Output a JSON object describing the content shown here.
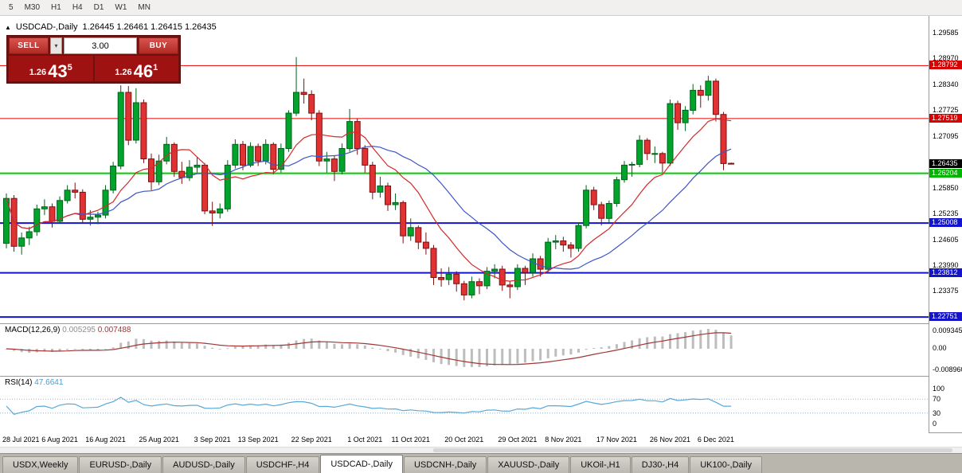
{
  "toolbar": {
    "timeframes": [
      "5",
      "M30",
      "H1",
      "H4",
      "D1",
      "W1",
      "MN"
    ]
  },
  "icons": {
    "marker": "▲",
    "dropdown": "▾"
  },
  "chart": {
    "symbol": "USDCAD-,Daily",
    "ohlc": "1.26445 1.26461 1.26415 1.26435"
  },
  "trade_panel": {
    "sell_label": "SELL",
    "buy_label": "BUY",
    "volume": "3.00",
    "bid": {
      "prefix": "1.26",
      "big": "43",
      "sup": "5"
    },
    "ask": {
      "prefix": "1.26",
      "big": "46",
      "sup": "1"
    }
  },
  "price_axis": {
    "ticks": [
      {
        "label": "1.29585",
        "price": 1.29585
      },
      {
        "label": "1.28970",
        "price": 1.2897
      },
      {
        "label": "1.28340",
        "price": 1.2834
      },
      {
        "label": "1.27725",
        "price": 1.27725
      },
      {
        "label": "1.27095",
        "price": 1.27095
      },
      {
        "label": "1.25850",
        "price": 1.2585
      },
      {
        "label": "1.25235",
        "price": 1.25235
      },
      {
        "label": "1.24605",
        "price": 1.24605
      },
      {
        "label": "1.23990",
        "price": 1.2399
      },
      {
        "label": "1.23375",
        "price": 1.23375
      }
    ],
    "current": {
      "label": "1.26435",
      "price": 1.26435,
      "bg": "#000000"
    }
  },
  "hlines": [
    {
      "label": "1.28792",
      "price": 1.28792,
      "color": "#e80000",
      "badge": "#d80000",
      "width": 1
    },
    {
      "label": "1.27519",
      "price": 1.27519,
      "color": "#e80000",
      "badge": "#d80000",
      "width": 1
    },
    {
      "label": "1.26204",
      "price": 1.26204,
      "color": "#00ce00",
      "badge": "#00b400",
      "width": 2
    },
    {
      "label": "1.25008",
      "price": 1.25008,
      "color": "#1414cc",
      "badge": "#1414cc",
      "width": 2
    },
    {
      "label": "1.23812",
      "price": 1.23812,
      "color": "#1414cc",
      "badge": "#1414cc",
      "width": 2
    },
    {
      "label": "1.22751",
      "price": 1.22751,
      "color": "#1414cc",
      "badge": "#1414cc",
      "width": 2
    }
  ],
  "colors": {
    "bull": "#00a42c",
    "bull_border": "#00611a",
    "bear": "#e03232",
    "bear_border": "#7e0f0f",
    "macd_hist": "#bdbdbd",
    "macd_signal": "#a03636",
    "rsi": "#58a8d8",
    "rsi_level": "#8ab6d2"
  },
  "dates": [
    {
      "label": "28 Jul 2021",
      "i": 0
    },
    {
      "label": "6 Aug 2021",
      "i": 7
    },
    {
      "label": "16 Aug 2021",
      "i": 13
    },
    {
      "label": "25 Aug 2021",
      "i": 20
    },
    {
      "label": "3 Sep 2021",
      "i": 27
    },
    {
      "label": "13 Sep 2021",
      "i": 33
    },
    {
      "label": "22 Sep 2021",
      "i": 40
    },
    {
      "label": "1 Oct 2021",
      "i": 47
    },
    {
      "label": "11 Oct 2021",
      "i": 53
    },
    {
      "label": "20 Oct 2021",
      "i": 60
    },
    {
      "label": "29 Oct 2021",
      "i": 67
    },
    {
      "label": "8 Nov 2021",
      "i": 73
    },
    {
      "label": "17 Nov 2021",
      "i": 80
    },
    {
      "label": "26 Nov 2021",
      "i": 87
    },
    {
      "label": "6 Dec 2021",
      "i": 93
    }
  ],
  "tabs": [
    {
      "label": "USDX,Weekly",
      "active": false
    },
    {
      "label": "EURUSD-,Daily",
      "active": false
    },
    {
      "label": "AUDUSD-,Daily",
      "active": false
    },
    {
      "label": "USDCHF-,H4",
      "active": false
    },
    {
      "label": "USDCAD-,Daily",
      "active": true
    },
    {
      "label": "USDCNH-,Daily",
      "active": false
    },
    {
      "label": "XAUUSD-,Daily",
      "active": false
    },
    {
      "label": "UKOil-,H1",
      "active": false
    },
    {
      "label": "DJ30-,H4",
      "active": false
    },
    {
      "label": "UK100-,Daily",
      "active": false
    }
  ],
  "chart_data": {
    "type": "candlestick",
    "symbol": "USDCAD",
    "timeframe": "Daily",
    "ylim": [
      1.22599,
      1.29987
    ],
    "layout_hints": {
      "x0": 8,
      "dx": 9.58,
      "body_width": 7
    },
    "ma": {
      "red": {
        "period": 10,
        "color": "#d42a2a"
      },
      "blue": {
        "period": 20,
        "color": "#3d55c6"
      }
    },
    "candles": [
      [
        1.2452,
        1.2572,
        1.244,
        1.256
      ],
      [
        1.256,
        1.2568,
        1.2432,
        1.2445
      ],
      [
        1.2445,
        1.2478,
        1.2425,
        1.2465
      ],
      [
        1.2465,
        1.2492,
        1.2448,
        1.248
      ],
      [
        1.248,
        1.2545,
        1.247,
        1.2535
      ],
      [
        1.2535,
        1.2558,
        1.252,
        1.254
      ],
      [
        1.254,
        1.2548,
        1.249,
        1.2505
      ],
      [
        1.2505,
        1.2565,
        1.25,
        1.2555
      ],
      [
        1.2555,
        1.2592,
        1.2548,
        1.258
      ],
      [
        1.258,
        1.2598,
        1.256,
        1.2575
      ],
      [
        1.2575,
        1.2582,
        1.25,
        1.251
      ],
      [
        1.251,
        1.2532,
        1.2495,
        1.2515
      ],
      [
        1.2515,
        1.2528,
        1.2498,
        1.252
      ],
      [
        1.252,
        1.2592,
        1.2512,
        1.258
      ],
      [
        1.258,
        1.2648,
        1.2572,
        1.2638
      ],
      [
        1.2638,
        1.2832,
        1.263,
        1.2815
      ],
      [
        1.2815,
        1.283,
        1.2688,
        1.27
      ],
      [
        1.27,
        1.2825,
        1.2692,
        1.279
      ],
      [
        1.279,
        1.2798,
        1.2645,
        1.2655
      ],
      [
        1.2655,
        1.2668,
        1.258,
        1.26
      ],
      [
        1.26,
        1.2665,
        1.2592,
        1.265
      ],
      [
        1.265,
        1.2708,
        1.2642,
        1.269
      ],
      [
        1.269,
        1.2695,
        1.2612,
        1.2625
      ],
      [
        1.2625,
        1.2648,
        1.2595,
        1.261
      ],
      [
        1.261,
        1.2652,
        1.2602,
        1.2635
      ],
      [
        1.2635,
        1.2658,
        1.2622,
        1.264
      ],
      [
        1.264,
        1.2645,
        1.2522,
        1.253
      ],
      [
        1.253,
        1.2552,
        1.2494,
        1.2525
      ],
      [
        1.2525,
        1.2548,
        1.2512,
        1.2535
      ],
      [
        1.2535,
        1.2652,
        1.2528,
        1.264
      ],
      [
        1.264,
        1.2702,
        1.2632,
        1.269
      ],
      [
        1.269,
        1.2698,
        1.2628,
        1.264
      ],
      [
        1.264,
        1.2695,
        1.2635,
        1.2685
      ],
      [
        1.2685,
        1.2692,
        1.2638,
        1.265
      ],
      [
        1.265,
        1.2702,
        1.2642,
        1.269
      ],
      [
        1.269,
        1.2695,
        1.2618,
        1.263
      ],
      [
        1.263,
        1.2692,
        1.2622,
        1.268
      ],
      [
        1.268,
        1.2772,
        1.2672,
        1.2765
      ],
      [
        1.2765,
        1.29,
        1.2758,
        1.2815
      ],
      [
        1.2815,
        1.2848,
        1.2788,
        1.281
      ],
      [
        1.281,
        1.282,
        1.2748,
        1.2765
      ],
      [
        1.2765,
        1.2772,
        1.2638,
        1.265
      ],
      [
        1.265,
        1.2672,
        1.2622,
        1.2655
      ],
      [
        1.2655,
        1.2662,
        1.2602,
        1.2625
      ],
      [
        1.2625,
        1.2692,
        1.2618,
        1.268
      ],
      [
        1.268,
        1.2775,
        1.2672,
        1.2745
      ],
      [
        1.2745,
        1.2752,
        1.2665,
        1.268
      ],
      [
        1.268,
        1.2688,
        1.2622,
        1.264
      ],
      [
        1.264,
        1.2648,
        1.2558,
        1.2575
      ],
      [
        1.2575,
        1.2612,
        1.2562,
        1.259
      ],
      [
        1.259,
        1.2598,
        1.253,
        1.2545
      ],
      [
        1.2545,
        1.2572,
        1.2532,
        1.255
      ],
      [
        1.255,
        1.2555,
        1.2452,
        1.247
      ],
      [
        1.247,
        1.2512,
        1.2458,
        1.249
      ],
      [
        1.249,
        1.2495,
        1.2438,
        1.2455
      ],
      [
        1.2455,
        1.2478,
        1.2425,
        1.244
      ],
      [
        1.244,
        1.2448,
        1.2352,
        1.237
      ],
      [
        1.237,
        1.2392,
        1.2348,
        1.2365
      ],
      [
        1.2365,
        1.2395,
        1.2352,
        1.2378
      ],
      [
        1.2378,
        1.2385,
        1.2336,
        1.2355
      ],
      [
        1.2355,
        1.2362,
        1.2315,
        1.2328
      ],
      [
        1.2328,
        1.2372,
        1.232,
        1.236
      ],
      [
        1.236,
        1.2368,
        1.233,
        1.235
      ],
      [
        1.235,
        1.2395,
        1.2342,
        1.2385
      ],
      [
        1.2385,
        1.2402,
        1.2368,
        1.239
      ],
      [
        1.239,
        1.2398,
        1.2338,
        1.2352
      ],
      [
        1.2352,
        1.2362,
        1.232,
        1.2348
      ],
      [
        1.2348,
        1.2402,
        1.234,
        1.2392
      ],
      [
        1.2392,
        1.2398,
        1.2352,
        1.2382
      ],
      [
        1.2382,
        1.2428,
        1.2372,
        1.2415
      ],
      [
        1.2415,
        1.2422,
        1.2372,
        1.239
      ],
      [
        1.239,
        1.2465,
        1.2382,
        1.2455
      ],
      [
        1.2455,
        1.2472,
        1.2438,
        1.2458
      ],
      [
        1.2458,
        1.2468,
        1.2432,
        1.2448
      ],
      [
        1.2448,
        1.2455,
        1.2418,
        1.244
      ],
      [
        1.244,
        1.2502,
        1.2432,
        1.2495
      ],
      [
        1.2495,
        1.2592,
        1.2488,
        1.258
      ],
      [
        1.258,
        1.2588,
        1.2532,
        1.2545
      ],
      [
        1.2545,
        1.2552,
        1.2495,
        1.2512
      ],
      [
        1.2512,
        1.2555,
        1.2502,
        1.2548
      ],
      [
        1.2548,
        1.2612,
        1.254,
        1.2605
      ],
      [
        1.2605,
        1.265,
        1.2598,
        1.264
      ],
      [
        1.264,
        1.2648,
        1.2612,
        1.2642
      ],
      [
        1.2642,
        1.2712,
        1.2635,
        1.27
      ],
      [
        1.27,
        1.2705,
        1.2652,
        1.2668
      ],
      [
        1.2668,
        1.2685,
        1.2645,
        1.2668
      ],
      [
        1.2668,
        1.2672,
        1.2622,
        1.2645
      ],
      [
        1.2645,
        1.2798,
        1.2638,
        1.2788
      ],
      [
        1.2788,
        1.2795,
        1.2725,
        1.2742
      ],
      [
        1.2742,
        1.2782,
        1.2722,
        1.2772
      ],
      [
        1.2772,
        1.2835,
        1.2762,
        1.282
      ],
      [
        1.282,
        1.2832,
        1.2778,
        1.2808
      ],
      [
        1.2808,
        1.2855,
        1.2795,
        1.2842
      ],
      [
        1.2842,
        1.2848,
        1.2745,
        1.2762
      ],
      [
        1.2762,
        1.2768,
        1.2628,
        1.2644
      ],
      [
        1.26445,
        1.26461,
        1.26415,
        1.26435
      ]
    ],
    "indicators": {
      "macd": {
        "name": "MACD(12,26,9)",
        "v1": "0.005295",
        "v2": "0.007488",
        "axis": [
          "0.009345",
          "0.00",
          "-0.008960"
        ]
      },
      "rsi": {
        "name": "RSI(14)",
        "value": "47.6641",
        "axis": [
          {
            "label": "100",
            "v": 100
          },
          {
            "label": "70",
            "v": 70
          },
          {
            "label": "30",
            "v": 30
          },
          {
            "label": "0",
            "v": 0
          }
        ],
        "levels": [
          70,
          30
        ]
      }
    }
  }
}
